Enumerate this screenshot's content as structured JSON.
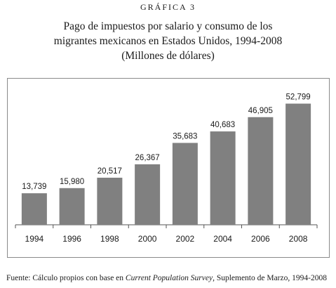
{
  "header": {
    "kicker": "GRÁFICA 3"
  },
  "chart_data": {
    "type": "bar",
    "title": "Pago de impuestos por salario y consumo de los migrantes mexicanos en Estados Unidos, 1994-2008",
    "subtitle": "(Millones de dólares)",
    "categories": [
      "1994",
      "1996",
      "1998",
      "2000",
      "2002",
      "2004",
      "2006",
      "2008"
    ],
    "values": [
      13739,
      15980,
      20517,
      26367,
      35683,
      40683,
      46905,
      52799
    ],
    "value_labels": [
      "13,739",
      "15,980",
      "20,517",
      "26,367",
      "35,683",
      "40,683",
      "46,905",
      "52,799"
    ],
    "ylim": [
      0,
      60000
    ],
    "grid": false,
    "bar_color": "#808080",
    "xlabel": "",
    "ylabel": ""
  },
  "footer": {
    "source_prefix": "Fuente: Cálculo propios con base en ",
    "source_italic": "Current Population Survey",
    "source_suffix": ", Suplemento de Marzo, 1994-2008"
  }
}
